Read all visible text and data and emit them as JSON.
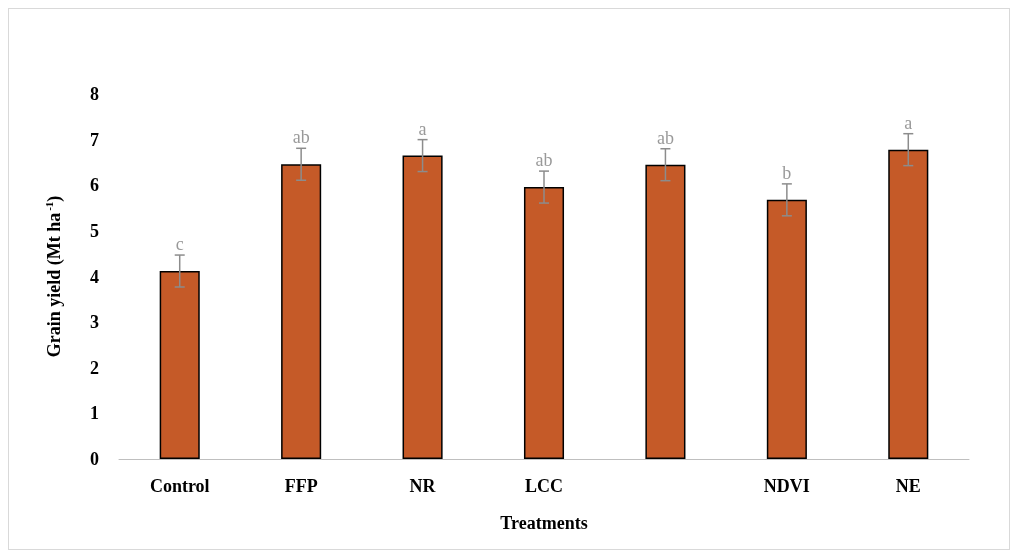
{
  "chart_data": {
    "type": "bar",
    "xlabel": "Treatments",
    "ylabel": "Grain yield (Mt ha$^{-1}$)",
    "categories": [
      "Control",
      "FFP",
      "NR",
      "LCC",
      null,
      "NDVI",
      "NE"
    ],
    "values": [
      4.12,
      6.46,
      6.65,
      5.96,
      6.45,
      5.68,
      6.78
    ],
    "errors": [
      0.35,
      0.35,
      0.35,
      0.35,
      0.35,
      0.35,
      0.35
    ],
    "color": "#c55a28",
    "ylim": [
      0,
      8
    ],
    "yticks": [
      0,
      1,
      2,
      3,
      4,
      5,
      6,
      7,
      8
    ],
    "grid": false,
    "annotations": [
      {
        "text": "c",
        "x": "Control",
        "y": 4.47
      },
      {
        "text": "ab",
        "x": "FFP",
        "y": 6.81
      },
      {
        "text": "a",
        "x": "NR",
        "y": 7.0
      },
      {
        "text": "ab",
        "x": "LCC",
        "y": 6.31
      },
      {
        "text": "ab",
        "y": 6.8
      },
      {
        "text": "b",
        "x": "NDVI",
        "y": 6.03
      },
      {
        "text": "a",
        "x": "NE",
        "y": 7.13
      }
    ]
  }
}
